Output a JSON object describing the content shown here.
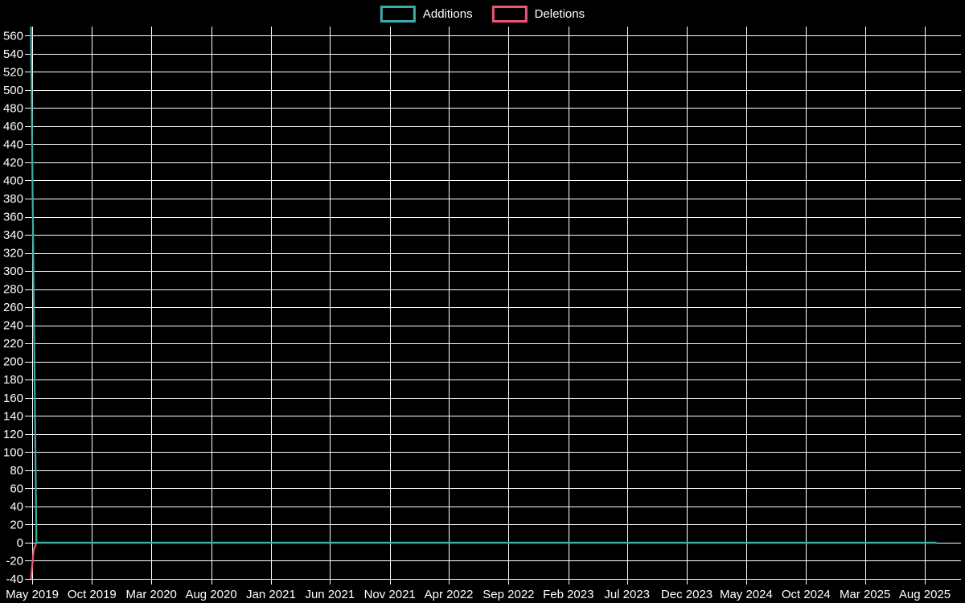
{
  "legend": {
    "items": [
      {
        "label": "Additions",
        "color": "#3aaea4"
      },
      {
        "label": "Deletions",
        "color": "#ef5576"
      }
    ]
  },
  "chart_data": {
    "type": "line",
    "title": "",
    "xlabel": "",
    "ylabel": "",
    "background": "#000000",
    "grid": true,
    "grid_color": "#ffffff",
    "legend_position": "top-center",
    "ylim": [
      -40,
      570
    ],
    "y_tick_step": 20,
    "y_ticks": [
      560,
      540,
      520,
      500,
      480,
      460,
      440,
      420,
      400,
      380,
      360,
      340,
      320,
      300,
      280,
      260,
      240,
      220,
      200,
      180,
      160,
      140,
      120,
      100,
      80,
      60,
      40,
      20,
      0,
      -20,
      -40
    ],
    "x_ticks": [
      {
        "label": "May 2019",
        "date": "2019-05-01"
      },
      {
        "label": "Oct 2019",
        "date": "2019-10-01"
      },
      {
        "label": "Mar 2020",
        "date": "2020-03-01"
      },
      {
        "label": "Aug 2020",
        "date": "2020-08-01"
      },
      {
        "label": "Jan 2021",
        "date": "2021-01-01"
      },
      {
        "label": "Jun 2021",
        "date": "2021-06-01"
      },
      {
        "label": "Nov 2021",
        "date": "2021-11-01"
      },
      {
        "label": "Apr 2022",
        "date": "2022-04-01"
      },
      {
        "label": "Sep 2022",
        "date": "2022-09-01"
      },
      {
        "label": "Feb 2023",
        "date": "2023-02-01"
      },
      {
        "label": "Jul 2023",
        "date": "2023-07-01"
      },
      {
        "label": "Dec 2023",
        "date": "2023-12-01"
      },
      {
        "label": "May 2024",
        "date": "2024-05-01"
      },
      {
        "label": "Oct 2024",
        "date": "2024-10-01"
      },
      {
        "label": "Mar 2025",
        "date": "2025-03-01"
      },
      {
        "label": "Aug 2025",
        "date": "2025-08-01"
      }
    ],
    "series": [
      {
        "name": "Additions",
        "color": "#3aaea4",
        "points": [
          [
            "2019-04-28",
            570
          ],
          [
            "2019-05-05",
            270
          ],
          [
            "2019-05-12",
            0
          ],
          [
            "2025-08-31",
            0
          ]
        ]
      },
      {
        "name": "Deletions",
        "color": "#ef5576",
        "points": [
          [
            "2019-04-28",
            -40
          ],
          [
            "2019-05-05",
            -8
          ],
          [
            "2019-05-12",
            0
          ],
          [
            "2025-08-31",
            0
          ]
        ]
      }
    ]
  }
}
